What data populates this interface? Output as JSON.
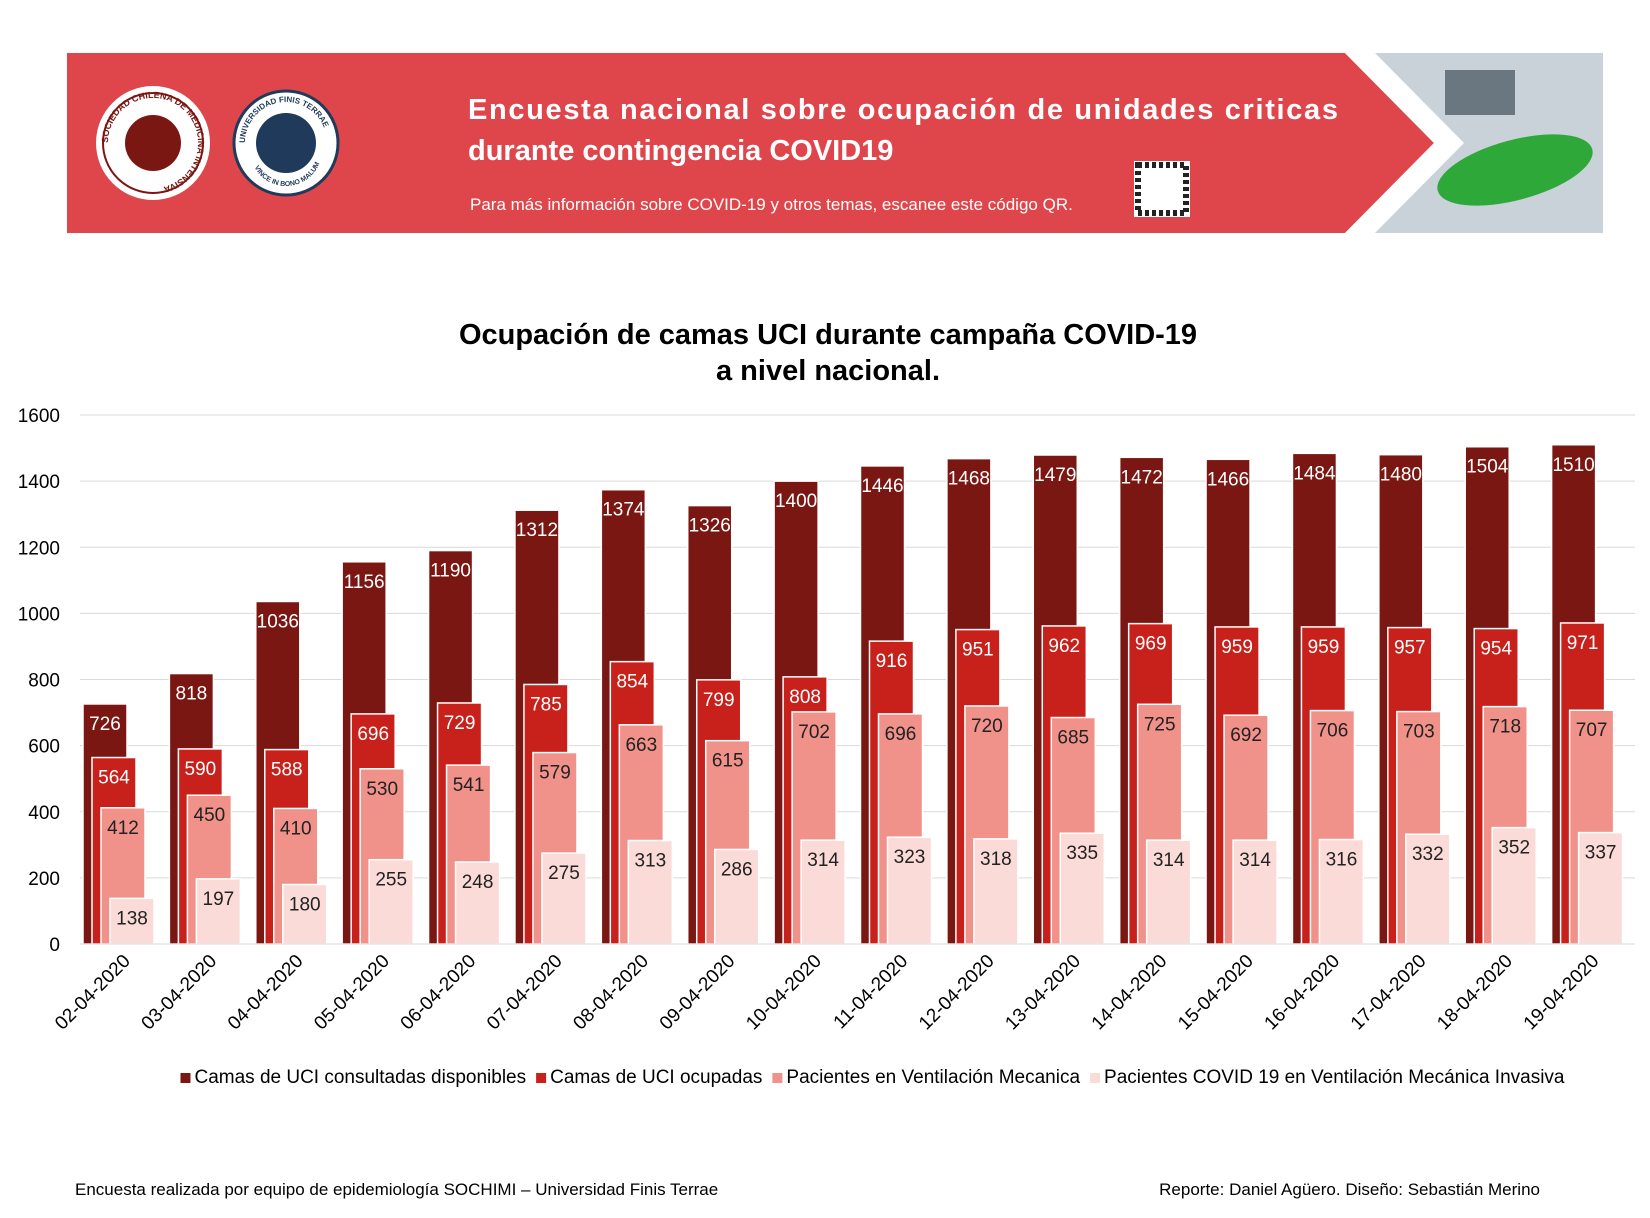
{
  "header": {
    "title_line1": "Encuesta nacional sobre ocupación de unidades criticas",
    "title_line2": "durante contingencia COVID19",
    "subtitle": "Para más información sobre COVID-19 y otros temas, escanee este código QR.",
    "logo1_text": "SOCIEDAD CHILENA DE MEDICINA INTENSIVA",
    "logo2_text": "UNIVERSIDAD FINIS TERRAE",
    "logo2_motto": "VINCE IN BONO MALUM"
  },
  "chart_data": {
    "type": "bar",
    "title": [
      "Ocupación de camas UCI durante campaña COVID-19",
      "a nivel nacional."
    ],
    "categories": [
      "02-04-2020",
      "03-04-2020",
      "04-04-2020",
      "05-04-2020",
      "06-04-2020",
      "07-04-2020",
      "08-04-2020",
      "09-04-2020",
      "10-04-2020",
      "11-04-2020",
      "12-04-2020",
      "13-04-2020",
      "14-04-2020",
      "15-04-2020",
      "16-04-2020",
      "17-04-2020",
      "18-04-2020",
      "19-04-2020"
    ],
    "series": [
      {
        "name": "Camas de UCI consultadas disponibles",
        "color": "#7b1712",
        "values": [
          726,
          818,
          1036,
          1156,
          1190,
          1312,
          1374,
          1326,
          1400,
          1446,
          1468,
          1479,
          1472,
          1466,
          1484,
          1480,
          1504,
          1510
        ]
      },
      {
        "name": "Camas de UCI ocupadas",
        "color": "#c8201a",
        "values": [
          564,
          590,
          588,
          696,
          729,
          785,
          854,
          799,
          808,
          916,
          951,
          962,
          969,
          959,
          959,
          957,
          954,
          971
        ]
      },
      {
        "name": "Pacientes en Ventilación Mecanica",
        "color": "#f0918a",
        "values": [
          412,
          450,
          410,
          530,
          541,
          579,
          663,
          615,
          702,
          696,
          720,
          685,
          725,
          692,
          706,
          703,
          718,
          707
        ]
      },
      {
        "name": "Pacientes COVID 19 en Ventilación Mecánica Invasiva",
        "color": "#fadbd8",
        "values": [
          138,
          197,
          180,
          255,
          248,
          275,
          313,
          286,
          314,
          323,
          318,
          335,
          314,
          314,
          316,
          332,
          352,
          337
        ]
      }
    ],
    "ylim": [
      0,
      1600
    ],
    "yticks": [
      0,
      200,
      400,
      600,
      800,
      1000,
      1200,
      1400,
      1600
    ],
    "grid": true,
    "legend": "bottom"
  },
  "footer": {
    "left": "Encuesta realizada por equipo de epidemiología SOCHIMI – Universidad Finis Terrae",
    "right": "Reporte: Daniel Agüero. Diseño: Sebastián Merino"
  }
}
